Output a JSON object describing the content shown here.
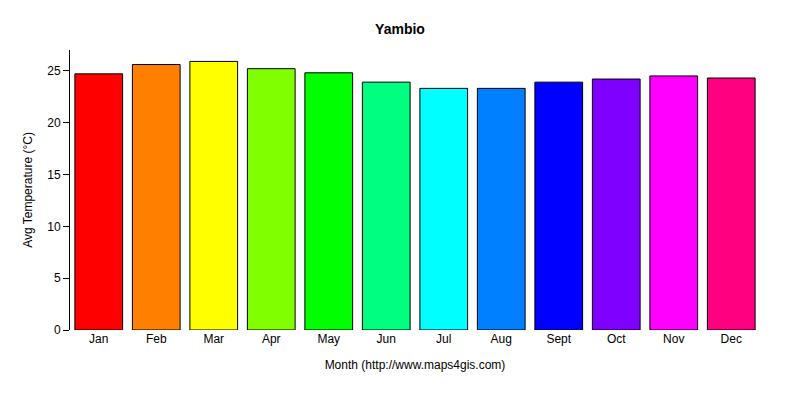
{
  "chart_data": {
    "type": "bar",
    "title": "Yambio",
    "x_label": "Month (http://www.maps4gis.com)",
    "y_label": "Avg Temperature (°C)",
    "categories": [
      "Jan",
      "Feb",
      "Mar",
      "Apr",
      "May",
      "Jun",
      "Jul",
      "Aug",
      "Sept",
      "Oct",
      "Nov",
      "Dec"
    ],
    "values": [
      24.7,
      25.6,
      25.9,
      25.2,
      24.8,
      23.9,
      23.3,
      23.3,
      23.9,
      24.2,
      24.5,
      24.3
    ],
    "colors": [
      "#FF0000",
      "#FF8000",
      "#FFFF00",
      "#80FF00",
      "#00FF00",
      "#00FF80",
      "#00FFFF",
      "#0080FF",
      "#0000FF",
      "#8000FF",
      "#FF00FF",
      "#FF0080"
    ],
    "ylim": [
      0,
      27
    ],
    "yticks": [
      0,
      5,
      10,
      15,
      20,
      25
    ],
    "grid": false
  }
}
